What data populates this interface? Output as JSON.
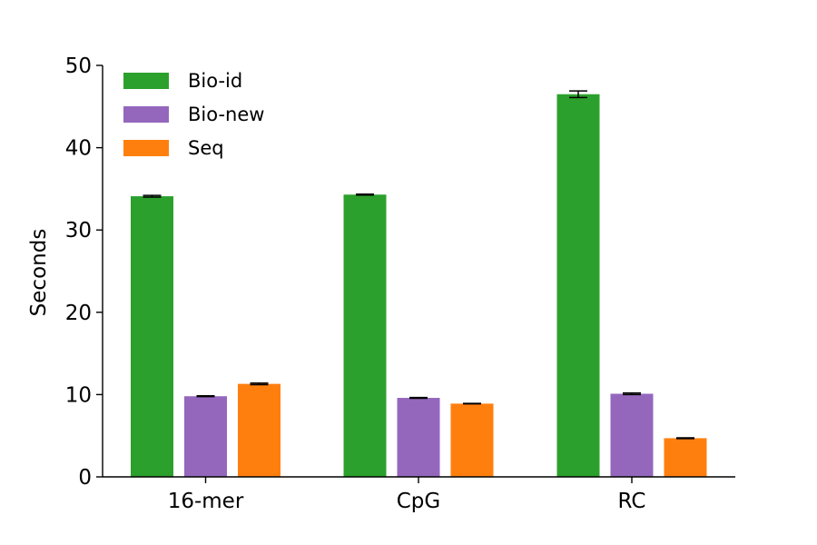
{
  "chart_data": {
    "type": "bar",
    "title": "",
    "xlabel": "",
    "ylabel": "Seconds",
    "ylim": [
      0,
      50
    ],
    "yticks": [
      "0",
      "10",
      "20",
      "30",
      "40",
      "50"
    ],
    "categories": [
      "16-mer",
      "CpG",
      "RC"
    ],
    "series": [
      {
        "name": "Bio-id",
        "color": "#2ca02c",
        "values": [
          34.1,
          34.3,
          46.5
        ],
        "errors": [
          0.1,
          0.05,
          0.4
        ]
      },
      {
        "name": "Bio-new",
        "color": "#9467bd",
        "values": [
          9.8,
          9.6,
          10.1
        ],
        "errors": [
          0.05,
          0.05,
          0.1
        ]
      },
      {
        "name": "Seq",
        "color": "#ff7f0e",
        "values": [
          11.3,
          8.9,
          4.7
        ],
        "errors": [
          0.1,
          0.03,
          0.05
        ]
      }
    ],
    "legend": "top-left",
    "grid": false
  }
}
